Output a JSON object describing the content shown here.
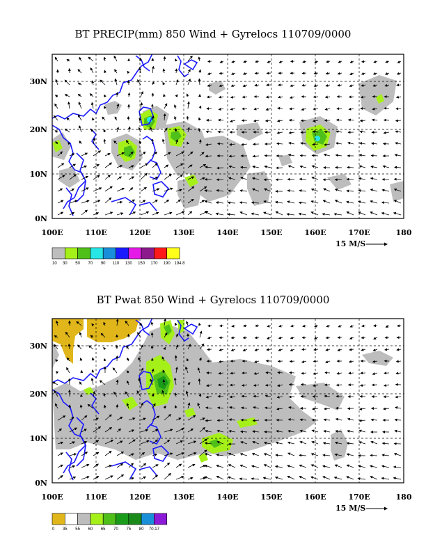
{
  "panels": [
    {
      "title": "BT PRECIP(mm) 850 Wind + Gyrelocs 110709/0000",
      "x_ticks": [
        "100E",
        "110E",
        "120E",
        "130E",
        "140E",
        "150E",
        "160E",
        "170E",
        "180"
      ],
      "y_ticks": [
        "0N",
        "10N",
        "20N",
        "30N"
      ],
      "scale_label": "15 M/S",
      "legend": {
        "colors": [
          "#bdbdbd",
          "#a6f01a",
          "#4fbf1a",
          "#27e6e6",
          "#1a8fd9",
          "#1a1aff",
          "#e61ae6",
          "#8c1a8c",
          "#ff1a1a",
          "#ffff1a"
        ],
        "labels": [
          "10",
          "30",
          "50",
          "70",
          "90",
          "110",
          "130",
          "150",
          "170",
          "190",
          "194.8"
        ]
      }
    },
    {
      "title": "BT Pwat 850 Wind + Gyrelocs 110709/0000",
      "x_ticks": [
        "100E",
        "110E",
        "120E",
        "130E",
        "140E",
        "150E",
        "160E",
        "170E",
        "180"
      ],
      "y_ticks": [
        "0N",
        "10N",
        "20N",
        "30N"
      ],
      "scale_label": "15 M/S",
      "legend": {
        "colors": [
          "#e0b61a",
          "#ffffff",
          "#bdbdbd",
          "#a6f01a",
          "#4fbf1a",
          "#1a9b1a",
          "#1a8a1a",
          "#1a8fd9",
          "#8c1ad9"
        ],
        "labels": [
          "0",
          "35",
          "55",
          "60",
          "65",
          "70",
          "75",
          "80",
          "70.17"
        ]
      }
    }
  ]
}
